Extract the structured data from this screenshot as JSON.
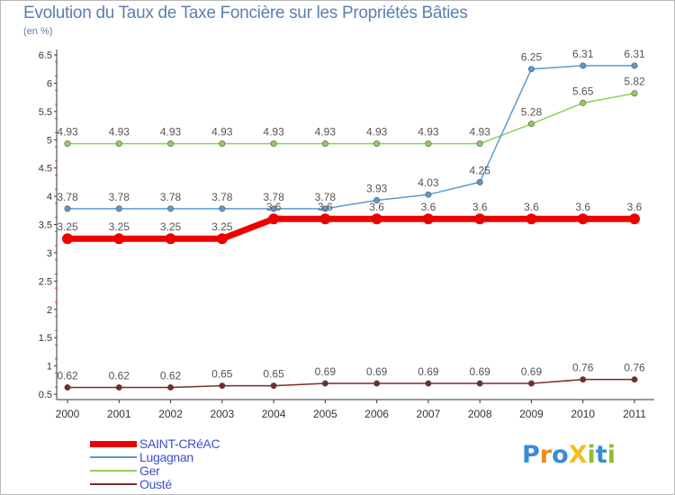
{
  "title": "Evolution du Taux de Taxe Foncière sur les Propriétés Bâties",
  "subtitle": "(en %)",
  "logo": {
    "text": "ProXiti",
    "letters": [
      {
        "ch": "P",
        "color": "#3a8ad8"
      },
      {
        "ch": "r",
        "color": "#f08a20"
      },
      {
        "ch": "o",
        "color": "#3a8ad8"
      },
      {
        "ch": "X",
        "color": "#f0c020"
      },
      {
        "ch": "i",
        "color": "#8ac030"
      },
      {
        "ch": "t",
        "color": "#3a8ad8"
      },
      {
        "ch": "i",
        "color": "#8ac030"
      }
    ]
  },
  "chart_data": {
    "type": "line",
    "title": "Evolution du Taux de Taxe Foncière sur les Propriétés Bâties",
    "ylabel": "(en %)",
    "xlabel": "",
    "x": [
      "2000",
      "2001",
      "2002",
      "2003",
      "2004",
      "2005",
      "2006",
      "2007",
      "2008",
      "2009",
      "2010",
      "2011"
    ],
    "ylim": [
      0.5,
      6.5
    ],
    "yticks": [
      "0.5",
      "1",
      "1.5",
      "2",
      "2.5",
      "3",
      "3.5",
      "4",
      "4.5",
      "5",
      "5.5",
      "6",
      "6.5"
    ],
    "ytick_values": [
      0.5,
      1,
      1.5,
      2,
      2.5,
      3,
      3.5,
      4,
      4.5,
      5,
      5.5,
      6,
      6.5
    ],
    "grid": false,
    "legend_position": "bottom-left",
    "series": [
      {
        "name": "Ousté",
        "color": "#7a2a2a",
        "width": 1.5,
        "values": [
          0.62,
          0.62,
          0.62,
          0.65,
          0.65,
          0.69,
          0.69,
          0.69,
          0.69,
          0.69,
          0.76,
          0.76
        ],
        "labels": [
          "0.62",
          "0.62",
          "0.62",
          "0.65",
          "0.65",
          "0.69",
          "0.69",
          "0.69",
          "0.69",
          "0.69",
          "0.76",
          "0.76"
        ]
      },
      {
        "name": "Ger",
        "color": "#8ed05a",
        "width": 1.5,
        "values": [
          4.93,
          4.93,
          4.93,
          4.93,
          4.93,
          4.93,
          4.93,
          4.93,
          4.93,
          5.28,
          5.65,
          5.82
        ],
        "labels": [
          "4.93",
          "4.93",
          "4.93",
          "4.93",
          "4.93",
          "4.93",
          "4.93",
          "4.93",
          "4.93",
          "5.28",
          "5.65",
          "5.82"
        ]
      },
      {
        "name": "Lugagnan",
        "color": "#5a9ad0",
        "width": 1.5,
        "values": [
          3.78,
          3.78,
          3.78,
          3.78,
          3.78,
          3.78,
          3.93,
          4.03,
          4.25,
          6.25,
          6.31,
          6.31
        ],
        "labels": [
          "3.78",
          "3.78",
          "3.78",
          "3.78",
          "3.78",
          "3.78",
          "3.93",
          "4.03",
          "4.25",
          "6.25",
          "6.31",
          "6.31"
        ]
      },
      {
        "name": "SAINT-CRéAC",
        "color": "#ee0000",
        "width": 7,
        "values": [
          3.25,
          3.25,
          3.25,
          3.25,
          3.6,
          3.6,
          3.6,
          3.6,
          3.6,
          3.6,
          3.6,
          3.6
        ],
        "labels": [
          "3.25",
          "3.25",
          "3.25",
          "3.25",
          "3.6",
          "3.6",
          "3.6",
          "3.6",
          "3.6",
          "3.6",
          "3.6",
          "3.6"
        ]
      }
    ],
    "legend_order": [
      "SAINT-CRéAC",
      "Lugagnan",
      "Ger",
      "Ousté"
    ]
  }
}
